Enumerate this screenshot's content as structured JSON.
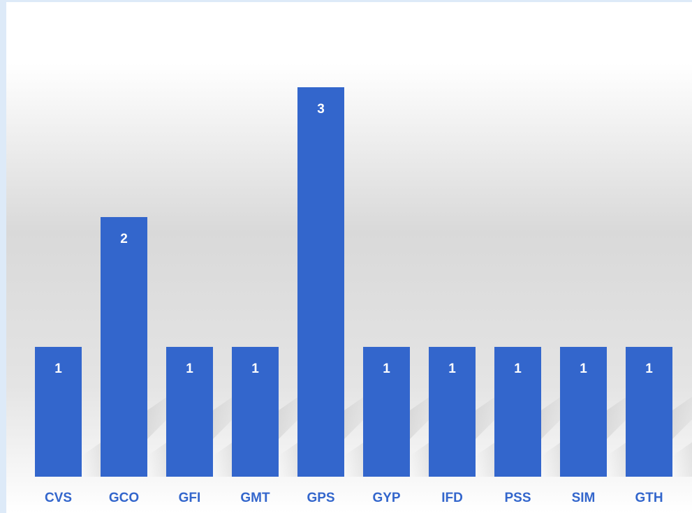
{
  "chart_data": {
    "type": "bar",
    "categories": [
      "CVS",
      "GCO",
      "GFI",
      "GMT",
      "GPS",
      "GYP",
      "IFD",
      "PSS",
      "SIM",
      "GTH"
    ],
    "values": [
      1,
      2,
      1,
      1,
      3,
      1,
      1,
      1,
      1,
      1
    ],
    "color": "#3366cc"
  }
}
